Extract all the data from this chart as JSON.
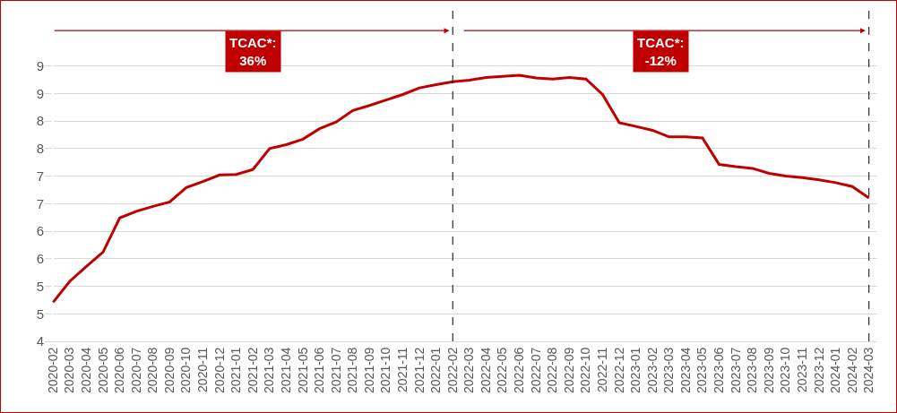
{
  "chart_data": {
    "type": "line",
    "categories": [
      "2020-02",
      "2020-03",
      "2020-04",
      "2020-05",
      "2020-06",
      "2020-07",
      "2020-08",
      "2020-09",
      "2020-10",
      "2020-11",
      "2020-12",
      "2021-01",
      "2021-02",
      "2021-03",
      "2021-04",
      "2021-05",
      "2021-06",
      "2021-07",
      "2021-08",
      "2021-09",
      "2021-10",
      "2021-11",
      "2021-12",
      "2022-01",
      "2022-02",
      "2022-03",
      "2022-04",
      "2022-05",
      "2022-06",
      "2022-07",
      "2022-08",
      "2022-09",
      "2022-10",
      "2022-11",
      "2022-12",
      "2023-01",
      "2023-02",
      "2023-03",
      "2023-04",
      "2023-05",
      "2023-06",
      "2023-07",
      "2023-08",
      "2023-09",
      "2023-10",
      "2023-11",
      "2023-12",
      "2024-01",
      "2024-02",
      "2024-03"
    ],
    "series": [
      {
        "color": "#c00000",
        "values": [
          4.71,
          5.09,
          5.36,
          5.62,
          6.24,
          6.36,
          6.45,
          6.53,
          6.79,
          6.9,
          7.02,
          7.03,
          7.12,
          7.5,
          7.57,
          7.67,
          7.86,
          7.98,
          8.19,
          8.28,
          8.38,
          8.48,
          8.6,
          8.66,
          8.71,
          8.74,
          8.79,
          8.81,
          8.83,
          8.78,
          8.76,
          8.79,
          8.76,
          8.48,
          7.97,
          7.9,
          7.83,
          7.71,
          7.71,
          7.69,
          7.21,
          7.17,
          7.14,
          7.05,
          7.0,
          6.97,
          6.93,
          6.88,
          6.81,
          6.6
        ]
      }
    ],
    "ylim": [
      4,
      10
    ],
    "yticks": [
      4,
      {
        "value": 4.5,
        "label": "5"
      },
      5,
      {
        "value": 5.5,
        "label": "6"
      },
      6,
      {
        "value": 6.5,
        "label": "7"
      },
      7,
      {
        "value": 7.5,
        "label": "8"
      },
      8,
      {
        "value": 8.5,
        "label": "9"
      },
      9
    ],
    "grid": "y",
    "marker": "none",
    "line_style": "solid",
    "ref_lines": [
      {
        "axis": "x",
        "value": "2022-02",
        "color": "#000000",
        "line_style": "dashed"
      },
      {
        "axis": "x",
        "value": "2024-03",
        "color": "#000000",
        "line_style": "dashed"
      }
    ],
    "annotations": [
      "TCAC*:\n36%",
      "TCAC*:\n-12%"
    ]
  }
}
